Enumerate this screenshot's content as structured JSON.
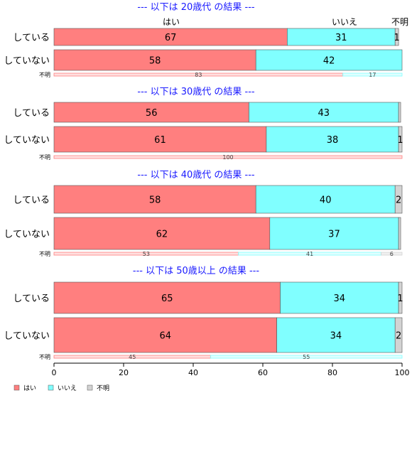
{
  "chart_data": {
    "type": "bar",
    "orientation": "horizontal",
    "stacked": "percent",
    "xlim": [
      0,
      100
    ],
    "x_ticks": [
      "0",
      "20",
      "40",
      "60",
      "80",
      "100"
    ],
    "column_header_labels": [
      "はい",
      "いいえ",
      "不明"
    ],
    "legend": {
      "placement": "bottom-left",
      "entries": [
        {
          "label": "はい",
          "color": "#ff7f7f"
        },
        {
          "label": "いいえ",
          "color": "#80ffff"
        },
        {
          "label": "不明",
          "color": "#d3d3d3"
        }
      ]
    },
    "panels": [
      {
        "title": "--- 以下は 20歳代 の結果 ---",
        "rows": [
          {
            "category": "している",
            "values": [
              67,
              31,
              1
            ],
            "labels": [
              "67",
              "31",
              "1"
            ]
          },
          {
            "category": "していない",
            "values": [
              58,
              42,
              0
            ],
            "labels": [
              "58",
              "42",
              ""
            ]
          },
          {
            "category": "不明",
            "small": true,
            "values": [
              83,
              17,
              0
            ],
            "labels": [
              "83",
              "17",
              ""
            ]
          }
        ]
      },
      {
        "title": "--- 以下は 30歳代 の結果 ---",
        "rows": [
          {
            "category": "している",
            "values": [
              56,
              43,
              0.6
            ],
            "labels": [
              "56",
              "43",
              ""
            ]
          },
          {
            "category": "していない",
            "values": [
              61,
              38,
              1
            ],
            "labels": [
              "61",
              "38",
              "1"
            ]
          },
          {
            "category": "不明",
            "small": true,
            "values": [
              100,
              0,
              0
            ],
            "labels": [
              "100",
              "",
              ""
            ]
          }
        ]
      },
      {
        "title": "--- 以下は 40歳代 の結果 ---",
        "rows": [
          {
            "category": "している",
            "values": [
              58,
              40,
              2
            ],
            "labels": [
              "58",
              "40",
              "2"
            ]
          },
          {
            "category": "していない",
            "values": [
              62,
              37,
              0.6
            ],
            "labels": [
              "62",
              "37",
              ""
            ]
          },
          {
            "category": "不明",
            "small": true,
            "values": [
              53,
              41,
              6
            ],
            "labels": [
              "53",
              "41",
              "6"
            ]
          }
        ]
      },
      {
        "title": "--- 以下は 50歳以上 の結果 ---",
        "rows": [
          {
            "category": "している",
            "values": [
              65,
              34,
              1
            ],
            "labels": [
              "65",
              "34",
              "1"
            ]
          },
          {
            "category": "していない",
            "values": [
              64,
              34,
              2
            ],
            "labels": [
              "64",
              "34",
              "2"
            ]
          },
          {
            "category": "不明",
            "small": true,
            "values": [
              45,
              55,
              0
            ],
            "labels": [
              "45",
              "55",
              ""
            ]
          }
        ]
      }
    ]
  }
}
